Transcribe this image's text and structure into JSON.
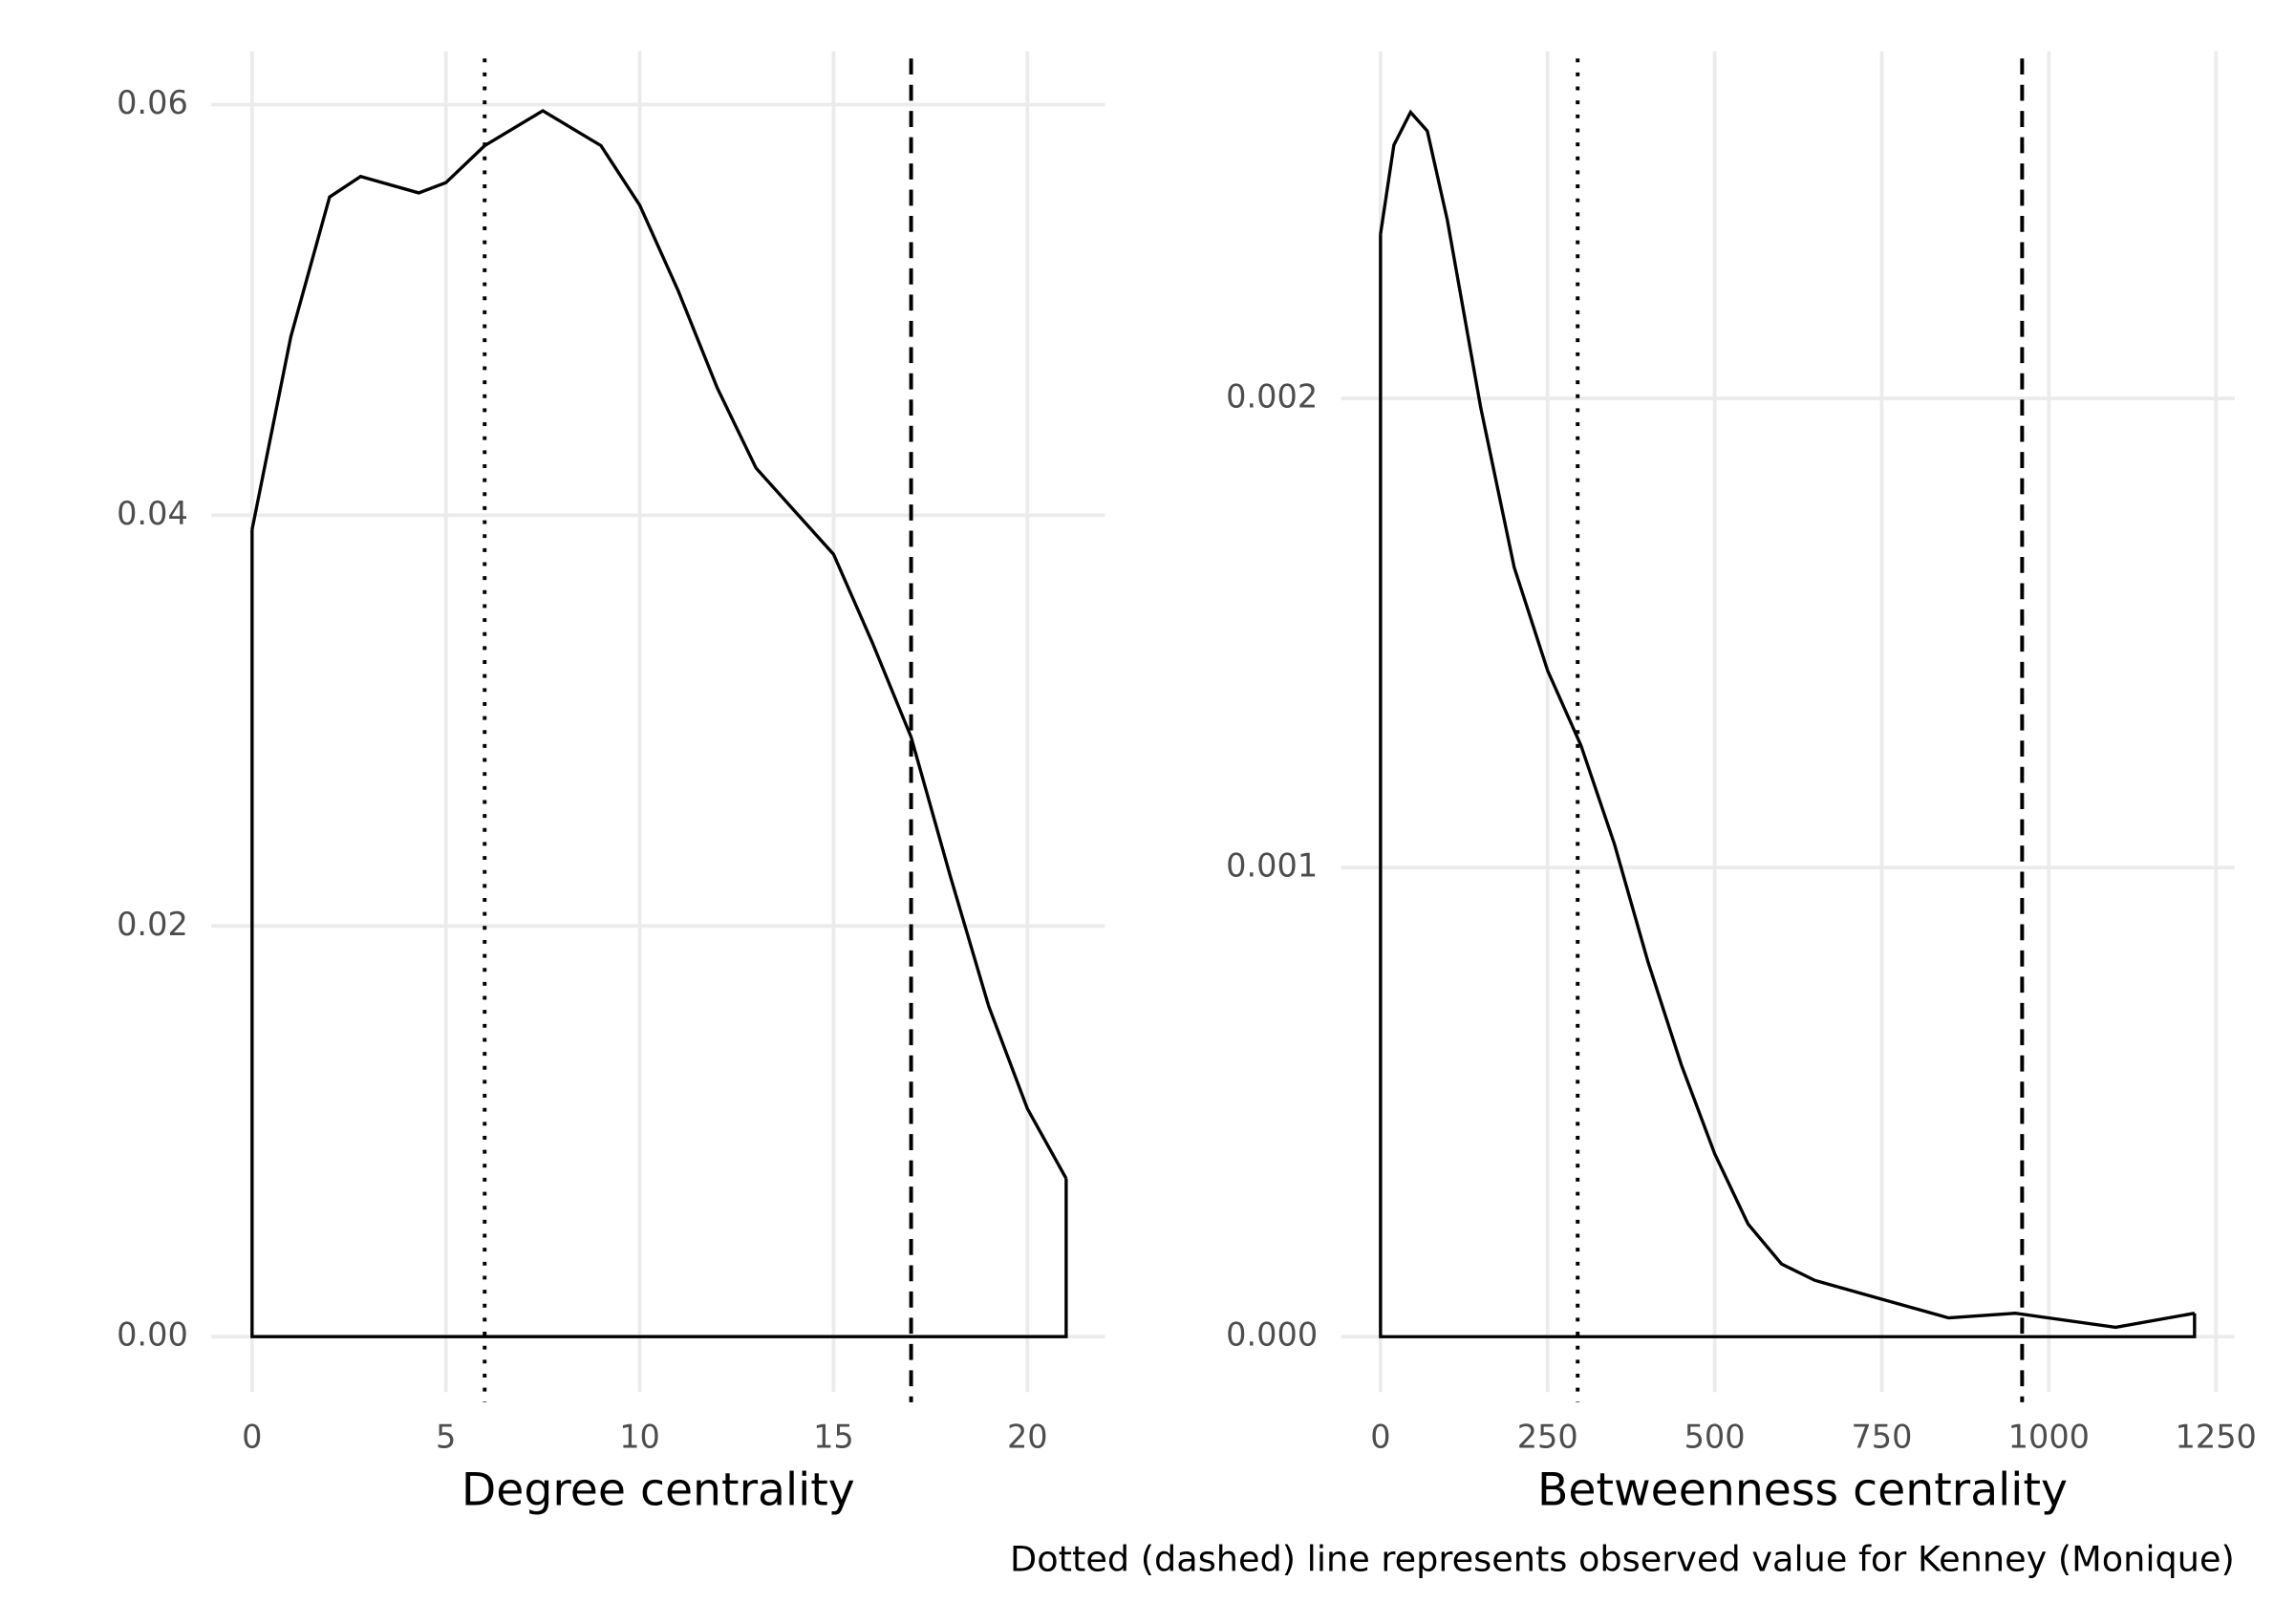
{
  "chart_data": [
    {
      "type": "density",
      "x_label": "Degree centrality",
      "x": [
        0,
        1,
        2,
        2.8,
        4.3,
        5,
        6,
        7.5,
        9,
        10,
        11,
        12,
        13,
        14,
        15,
        16,
        17,
        18,
        19,
        20,
        21
      ],
      "values": [
        0.0393,
        0.0487,
        0.0555,
        0.0565,
        0.0557,
        0.0562,
        0.058,
        0.0597,
        0.058,
        0.0551,
        0.0509,
        0.0462,
        0.0423,
        0.0402,
        0.0381,
        0.0338,
        0.0292,
        0.0225,
        0.0161,
        0.0111,
        0.0077
      ],
      "xlim": [
        -1.05,
        22
      ],
      "ylim": [
        -0.0027,
        0.0626
      ],
      "xticks": [
        0,
        5,
        10,
        15,
        20
      ],
      "yticks": [
        {
          "value": 0,
          "label": "0.00"
        },
        0.02,
        0.04,
        0.06
      ],
      "vlines": [
        {
          "value": 6,
          "style": "dotted"
        },
        {
          "value": 17,
          "style": "dashed"
        }
      ],
      "color": "#000000",
      "grid": true
    },
    {
      "type": "density",
      "x_label": "Betweenness centrality",
      "x": [
        0,
        20,
        45,
        70,
        100,
        150,
        200,
        250,
        300,
        350,
        400,
        450,
        500,
        550,
        600,
        650,
        750,
        850,
        950,
        1000,
        1100,
        1218
      ],
      "values": [
        0.00235,
        0.00254,
        0.00261,
        0.00257,
        0.00238,
        0.00198,
        0.00164,
        0.00142,
        0.00126,
        0.00105,
        0.0008,
        0.00058,
        0.00039,
        0.00024,
        0.000155,
        0.00012,
        8e-05,
        4e-05,
        5e-05,
        4e-05,
        2e-05,
        5e-05
      ],
      "xlim": [
        -59,
        1278
      ],
      "ylim": [
        -0.000118,
        0.00274
      ],
      "xticks": [
        0,
        250,
        500,
        750,
        1000,
        1250
      ],
      "yticks": [
        {
          "value": 0,
          "label": "0.000"
        },
        0.001,
        0.002
      ],
      "vlines": [
        {
          "value": 295,
          "style": "dotted"
        },
        {
          "value": 960,
          "style": "dashed"
        }
      ],
      "color": "#000000",
      "grid": true
    }
  ],
  "caption": "Dotted (dashed) line represents observed value for Kenney (Monique)"
}
